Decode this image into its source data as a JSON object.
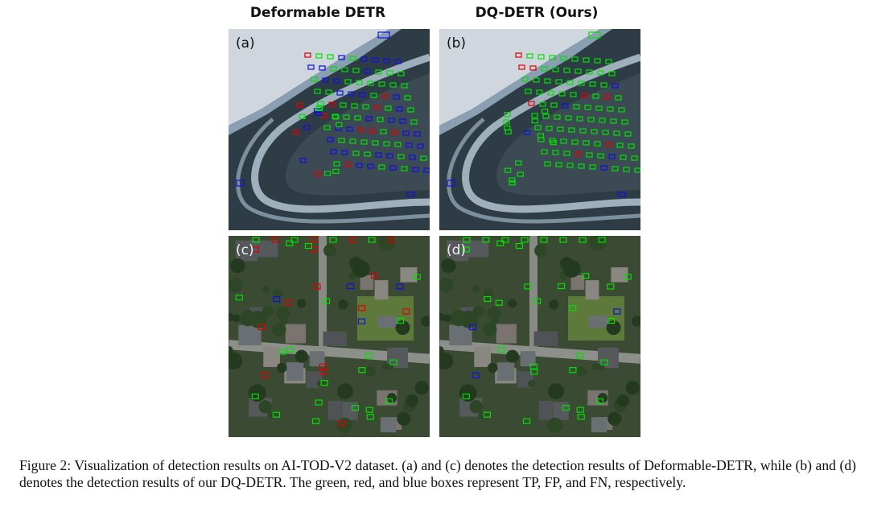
{
  "figure": {
    "columns": [
      "Deformable DETR",
      "DQ-DETR (Ours)"
    ],
    "panels": [
      {
        "label": "(a)",
        "scene": "parking-lot",
        "method": "Deformable DETR"
      },
      {
        "label": "(b)",
        "scene": "parking-lot",
        "method": "DQ-DETR (Ours)"
      },
      {
        "label": "(c)",
        "scene": "residential",
        "method": "Deformable DETR"
      },
      {
        "label": "(d)",
        "scene": "residential",
        "method": "DQ-DETR (Ours)"
      }
    ],
    "box_colors": {
      "tp": "#00e000",
      "fp": "#e00000",
      "fn": "#1010e0"
    },
    "caption": "Figure 2: Visualization of detection results on AI-TOD-V2 dataset. (a) and (c) denotes the detection results of Deformable-DETR, while (b) and (d) denotes the detection results of our DQ-DETR. The green, red, and blue boxes represent TP, FP, and FN, respectively."
  }
}
